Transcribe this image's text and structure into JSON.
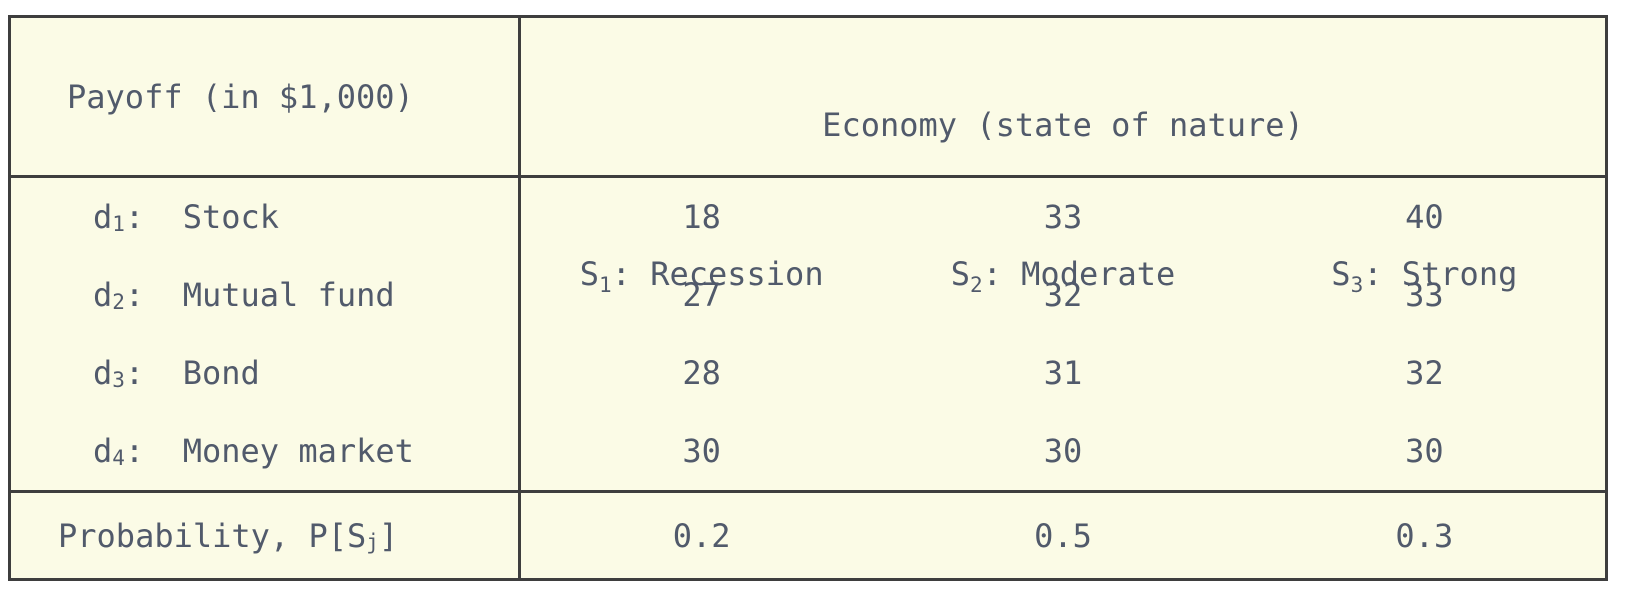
{
  "chart_data": {
    "type": "table",
    "title": "Payoff (in $1,000)",
    "column_group_header": "Economy (state of nature)",
    "columns": [
      "S1: Recession",
      "S2: Moderate",
      "S3: Strong"
    ],
    "rows": [
      {
        "label": "d1: Stock",
        "values": [
          18,
          33,
          40
        ]
      },
      {
        "label": "d2: Mutual fund",
        "values": [
          27,
          32,
          33
        ]
      },
      {
        "label": "d3: Bond",
        "values": [
          28,
          31,
          32
        ]
      },
      {
        "label": "d4: Money market",
        "values": [
          30,
          30,
          30
        ]
      }
    ],
    "footer": {
      "label": "Probability, P[Sj]",
      "values": [
        0.2,
        0.5,
        0.3
      ]
    },
    "layout": {
      "grid": "outer border, vertical divider after label column, horizontal rules under header and above probability row"
    }
  },
  "colors": {
    "table_background": "#fbfbe6",
    "text": "#515a6b",
    "border": "#3e3e3e",
    "page_background": "#ffffff"
  },
  "ui": {
    "corner_label": "Payoff (in $1,000)",
    "economy_header": "Economy (state of nature)",
    "states": [
      {
        "base": "S",
        "sub": "1",
        "rest": ": Recession"
      },
      {
        "base": "S",
        "sub": "2",
        "rest": ": Moderate"
      },
      {
        "base": "S",
        "sub": "3",
        "rest": ": Strong"
      }
    ],
    "rows": [
      {
        "base": "d",
        "sub": "1",
        "rest": ":  Stock",
        "values": [
          "18",
          "33",
          "40"
        ]
      },
      {
        "base": "d",
        "sub": "2",
        "rest": ":  Mutual fund",
        "values": [
          "27",
          "32",
          "33"
        ]
      },
      {
        "base": "d",
        "sub": "3",
        "rest": ":  Bond",
        "values": [
          "28",
          "31",
          "32"
        ]
      },
      {
        "base": "d",
        "sub": "4",
        "rest": ":  Money market",
        "values": [
          "30",
          "30",
          "30"
        ]
      }
    ],
    "prob": {
      "base": "Probability, P[S",
      "sub": "j",
      "rest": "]",
      "values": [
        "0.2",
        "0.5",
        "0.3"
      ]
    }
  }
}
